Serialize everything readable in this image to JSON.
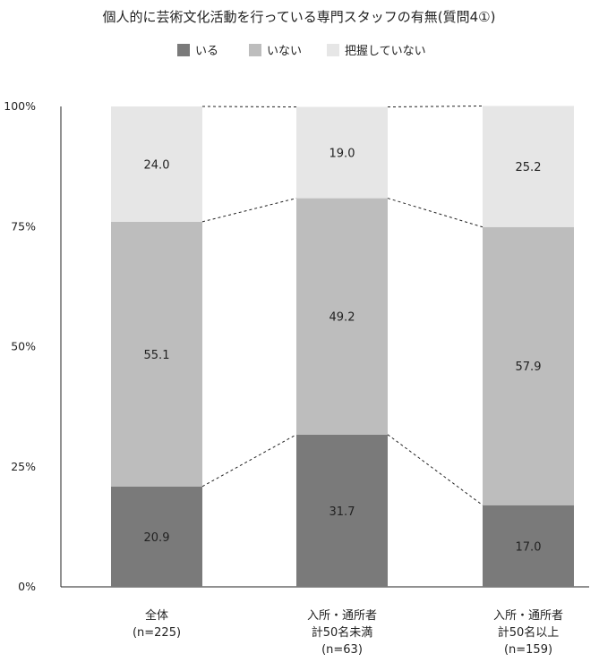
{
  "chart_data": {
    "type": "bar",
    "stacked": true,
    "title": "個人的に芸術文化活動を行っている専門スタッフの有無(質問4①)",
    "legend_position": "top",
    "categories": [
      [
        "全体",
        "(n=225)"
      ],
      [
        "入所・通所者",
        "計50名未満",
        "(n=63)"
      ],
      [
        "入所・通所者",
        "計50名以上",
        "(n=159)"
      ]
    ],
    "series": [
      {
        "name": "いる",
        "color": "#7a7a7a",
        "values": [
          20.9,
          31.7,
          17.0
        ],
        "labels": [
          "20.9",
          "31.7",
          "17.0"
        ]
      },
      {
        "name": "いない",
        "color": "#bdbdbd",
        "values": [
          55.1,
          49.2,
          57.9
        ],
        "labels": [
          "55.1",
          "49.2",
          "57.9"
        ]
      },
      {
        "name": "把握していない",
        "color": "#e6e6e6",
        "values": [
          24.0,
          19.0,
          25.2
        ],
        "labels": [
          "24.0",
          "19.0",
          "25.2"
        ]
      }
    ],
    "ylim": [
      0,
      100
    ],
    "yticks": [
      0,
      25,
      50,
      75,
      100
    ],
    "ytick_labels": [
      "0%",
      "25%",
      "50%",
      "75%",
      "100%"
    ],
    "grid": false,
    "series_lines": "dashed"
  }
}
